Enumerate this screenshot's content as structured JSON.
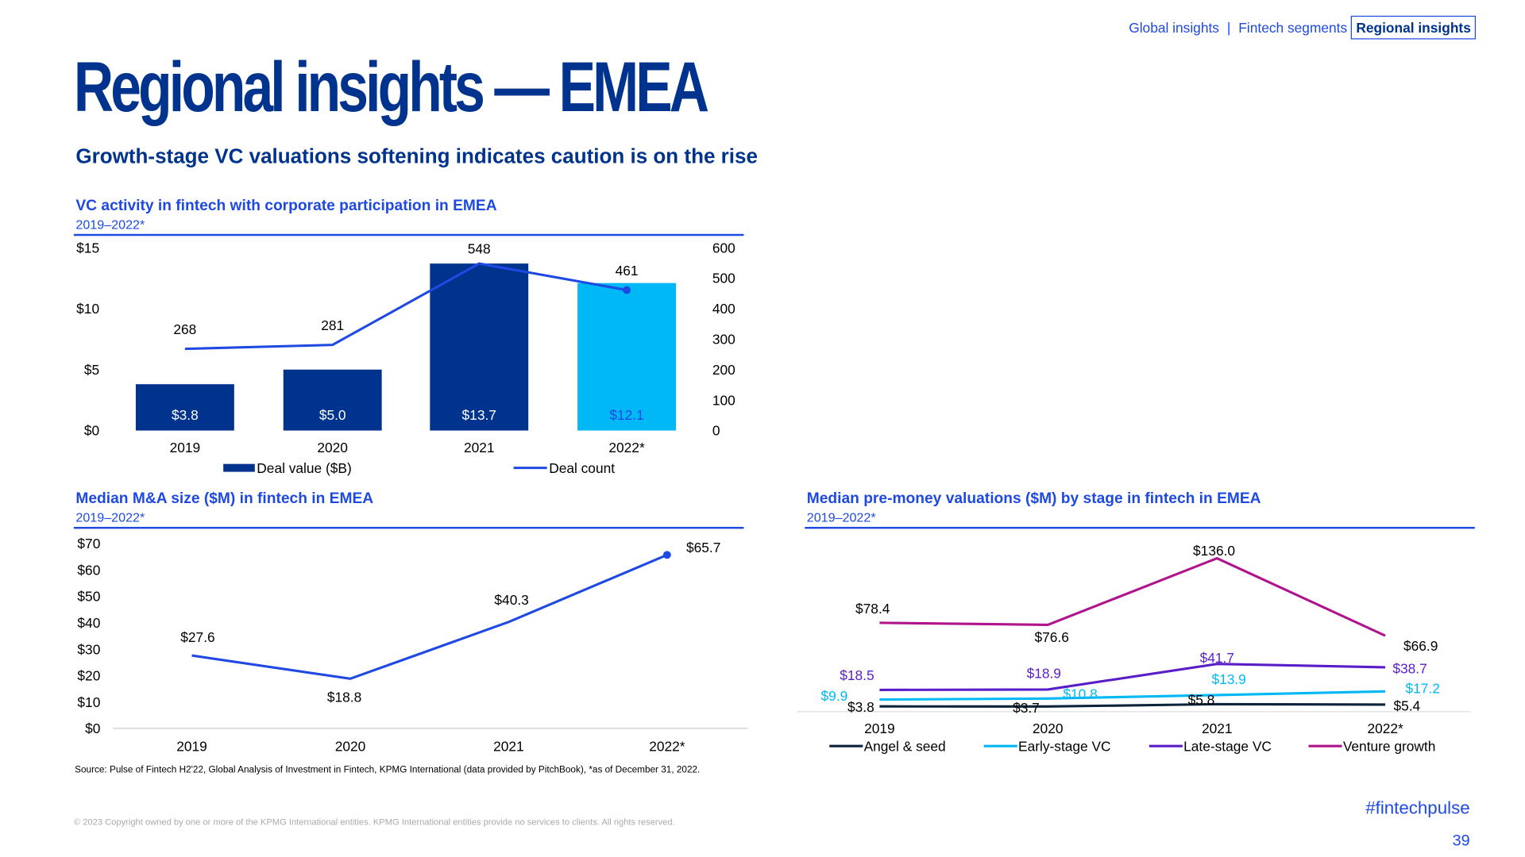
{
  "nav": {
    "items": [
      "Global insights",
      "Fintech segments",
      "Regional insights"
    ],
    "separator": "|",
    "active": "Regional insights"
  },
  "title": "Regional insights — EMEA",
  "subtitle": "Growth-stage VC valuations softening indicates caution is on the rise",
  "colors": {
    "navy": "#00338d",
    "blue": "#1e49e2",
    "cyan": "#00b8f5",
    "purple": "#5a1ec8",
    "magenta": "#b0148c",
    "dark": "#0c233c"
  },
  "chart_data": [
    {
      "type": "bar",
      "title": "VC activity in fintech with corporate participation in EMEA",
      "subtitle": "2019–2022*",
      "categories": [
        "2019",
        "2020",
        "2021",
        "2022*"
      ],
      "series": [
        {
          "name": "Deal value ($B)",
          "type": "bar",
          "axis": "left",
          "values": [
            3.8,
            5.0,
            13.7,
            12.1
          ],
          "labels": [
            "$3.8",
            "$5.0",
            "$13.7",
            "$12.1"
          ]
        },
        {
          "name": "Deal count",
          "type": "line",
          "axis": "right",
          "values": [
            268,
            281,
            548,
            461
          ],
          "labels": [
            "268",
            "281",
            "548",
            "461"
          ]
        }
      ],
      "yleft": {
        "ticks": [
          "$0",
          "$5",
          "$10",
          "$15"
        ],
        "range": [
          0,
          15
        ]
      },
      "yright": {
        "ticks": [
          "0",
          "100",
          "200",
          "300",
          "400",
          "500",
          "600"
        ],
        "range": [
          0,
          600
        ]
      },
      "legend": "bottom"
    },
    {
      "type": "line",
      "title": "Median M&A size ($M) in fintech in EMEA",
      "subtitle": "2019–2022*",
      "categories": [
        "2019",
        "2020",
        "2021",
        "2022*"
      ],
      "values": [
        27.6,
        18.8,
        40.3,
        65.7
      ],
      "labels": [
        "$27.6",
        "$18.8",
        "$40.3",
        "$65.7"
      ],
      "yticks": [
        "$0",
        "$10",
        "$20",
        "$30",
        "$40",
        "$50",
        "$60",
        "$70"
      ],
      "ylim": [
        0,
        70
      ]
    },
    {
      "type": "line",
      "title": "Median pre-money valuations ($M) by stage in fintech in EMEA",
      "subtitle": "2019–2022*",
      "categories": [
        "2019",
        "2020",
        "2021",
        "2022*"
      ],
      "series": [
        {
          "name": "Angel & seed",
          "values": [
            3.8,
            3.7,
            5.8,
            5.4
          ],
          "labels": [
            "$3.8",
            "$3.7",
            "$5.8",
            "$5.4"
          ]
        },
        {
          "name": "Early-stage VC",
          "values": [
            9.9,
            10.8,
            13.9,
            17.2
          ],
          "labels": [
            "$9.9",
            "$10.8",
            "$13.9",
            "$17.2"
          ]
        },
        {
          "name": "Late-stage VC",
          "values": [
            18.5,
            18.9,
            41.7,
            38.7
          ],
          "labels": [
            "$18.5",
            "$18.9",
            "$41.7",
            "$38.7"
          ]
        },
        {
          "name": "Venture growth",
          "values": [
            78.4,
            76.6,
            136.0,
            66.9
          ],
          "labels": [
            "$78.4",
            "$76.6",
            "$136.0",
            "$66.9"
          ]
        }
      ],
      "legend": "bottom"
    }
  ],
  "source": "Source: Pulse of Fintech H2'22, Global Analysis of Investment in Fintech, KPMG International (data provided by PitchBook), *as of December 31, 2022.",
  "copyright": "© 2023 Copyright owned by one or more of the KPMG International entities. KPMG International entities provide no services to clients. All rights reserved.",
  "hashtag": "#fintechpulse",
  "page_number": "39"
}
